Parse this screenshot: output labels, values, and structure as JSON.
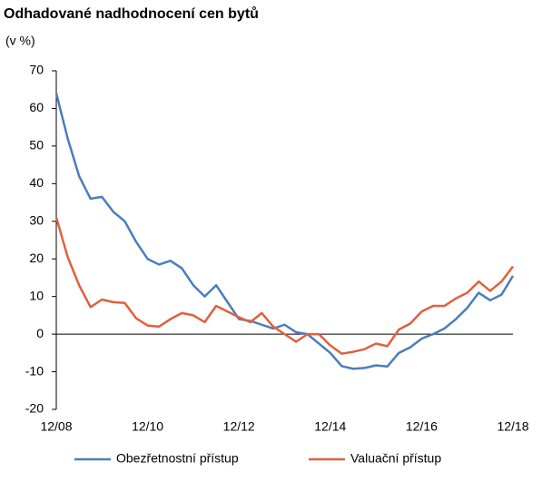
{
  "chart_data": {
    "type": "line",
    "title": "Odhadované nadhodnocení cen bytů",
    "subtitle": "(v %)",
    "categories": [
      "12/08",
      null,
      null,
      null,
      null,
      null,
      null,
      null,
      "12/10",
      null,
      null,
      null,
      null,
      null,
      null,
      null,
      "12/12",
      null,
      null,
      null,
      null,
      null,
      null,
      null,
      "12/14",
      null,
      null,
      null,
      null,
      null,
      null,
      null,
      "12/16",
      null,
      null,
      null,
      null,
      null,
      null,
      null,
      "12/18"
    ],
    "series": [
      {
        "name": "Obezřetnostní přístup",
        "color": "#4a7ebb",
        "values": [
          64,
          52,
          42,
          36,
          36.5,
          32.5,
          30,
          24.5,
          20,
          18.5,
          19.5,
          17.5,
          13,
          10,
          13,
          8.5,
          4,
          3.5,
          2.5,
          1.5,
          2.5,
          0.5,
          0,
          -2.5,
          -5,
          -8.5,
          -9.2,
          -9,
          -8.3,
          -8.6,
          -5,
          -3.5,
          -1.2,
          0,
          1.5,
          4,
          7,
          11,
          9,
          10.5,
          15.5
        ]
      },
      {
        "name": "Valuační přístup",
        "color": "#e0603e",
        "values": [
          31,
          20.5,
          13,
          7.2,
          9.2,
          8.5,
          8.3,
          4.2,
          2.3,
          2,
          4,
          5.6,
          5,
          3.2,
          7.5,
          6,
          4.5,
          3.2,
          5.6,
          2,
          0,
          -2,
          0,
          0,
          -3,
          -5.2,
          -4.7,
          -4,
          -2.5,
          -3.2,
          1.2,
          2.8,
          6,
          7.5,
          7.5,
          9.5,
          11,
          14,
          11.5,
          14,
          18
        ]
      }
    ],
    "ylim": [
      -20,
      70
    ],
    "yticks": [
      -20,
      -10,
      0,
      10,
      20,
      30,
      40,
      50,
      60,
      70
    ],
    "legend": "bottom"
  }
}
